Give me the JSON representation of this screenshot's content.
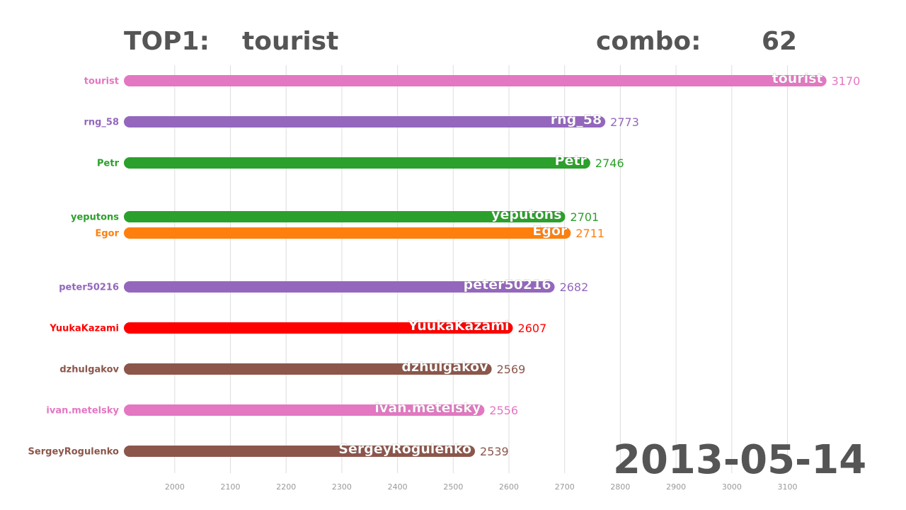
{
  "header": {
    "top_label": "TOP1:",
    "top_name": "tourist",
    "combo_label": "combo:",
    "combo_value": "62"
  },
  "date": "2013-05-14",
  "chart_data": {
    "type": "bar",
    "orientation": "horizontal",
    "title": "",
    "xlabel": "",
    "ylabel": "",
    "xlim": [
      1910,
      3210
    ],
    "x_ticks": [
      2000,
      2100,
      2200,
      2300,
      2400,
      2500,
      2600,
      2700,
      2800,
      2900,
      3000,
      3100
    ],
    "grid": true,
    "legend": "none",
    "categories": [
      "tourist",
      "rng_58",
      "Petr",
      "yeputons",
      "Egor",
      "peter50216",
      "YuukaKazami",
      "dzhulgakov",
      "ivan.metelsky",
      "SergeyRogulenko"
    ],
    "values": [
      3170,
      2773,
      2746,
      2701,
      2711,
      2682,
      2607,
      2569,
      2556,
      2539
    ],
    "colors": [
      "#e377c2",
      "#9467bd",
      "#2ca02c",
      "#2ca02c",
      "#ff7f0e",
      "#9467bd",
      "#ff0000",
      "#8c564b",
      "#e377c2",
      "#8c564b"
    ]
  }
}
